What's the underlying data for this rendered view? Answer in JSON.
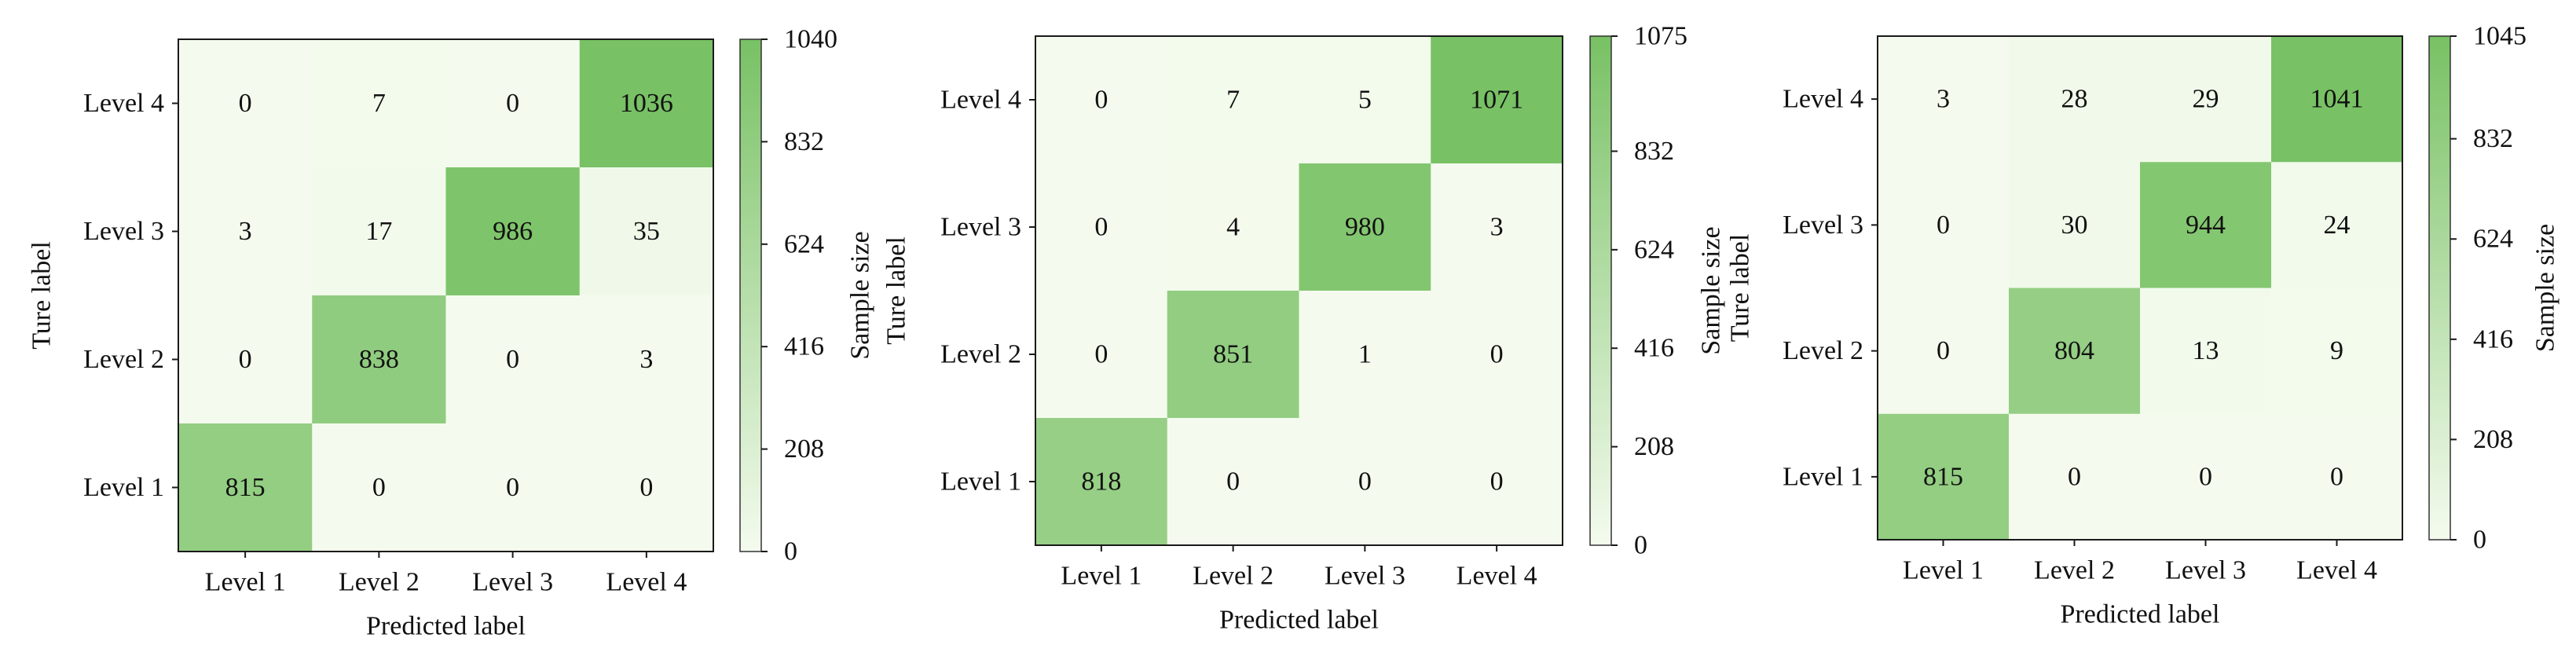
{
  "chart_data": [
    {
      "type": "heatmap",
      "xlabel": "Predicted label",
      "ylabel": "Ture label",
      "x_categories": [
        "Level 1",
        "Level 2",
        "Level 3",
        "Level 4"
      ],
      "y_categories": [
        "Level 4",
        "Level 3",
        "Level 2",
        "Level 1"
      ],
      "values": [
        [
          0,
          7,
          0,
          1036
        ],
        [
          3,
          17,
          986,
          35
        ],
        [
          0,
          838,
          0,
          3
        ],
        [
          815,
          0,
          0,
          0
        ]
      ],
      "grid": false,
      "colorbar": {
        "label": "Sample size",
        "position": "right",
        "range": [
          0,
          1040
        ],
        "ticks": [
          0,
          208,
          416,
          624,
          832,
          1040
        ],
        "colors": {
          "low": "#f4fbee",
          "high": "#78c164"
        }
      }
    },
    {
      "type": "heatmap",
      "xlabel": "Predicted label",
      "ylabel": "Ture label",
      "x_categories": [
        "Level 1",
        "Level 2",
        "Level 3",
        "Level 4"
      ],
      "y_categories": [
        "Level 4",
        "Level 3",
        "Level 2",
        "Level 1"
      ],
      "values": [
        [
          0,
          7,
          5,
          1071
        ],
        [
          0,
          4,
          980,
          3
        ],
        [
          0,
          851,
          1,
          0
        ],
        [
          818,
          0,
          0,
          0
        ]
      ],
      "grid": false,
      "colorbar": {
        "label": "Sample size",
        "position": "right",
        "range": [
          0,
          1075
        ],
        "ticks": [
          0,
          208,
          416,
          624,
          832,
          1075
        ],
        "colors": {
          "low": "#f4fbee",
          "high": "#78c164"
        }
      }
    },
    {
      "type": "heatmap",
      "xlabel": "Predicted label",
      "ylabel": "Ture label",
      "x_categories": [
        "Level 1",
        "Level 2",
        "Level 3",
        "Level 4"
      ],
      "y_categories": [
        "Level 4",
        "Level 3",
        "Level 2",
        "Level 1"
      ],
      "values": [
        [
          3,
          28,
          29,
          1041
        ],
        [
          0,
          30,
          944,
          24
        ],
        [
          0,
          804,
          13,
          9
        ],
        [
          815,
          0,
          0,
          0
        ]
      ],
      "grid": false,
      "colorbar": {
        "label": "Sample size",
        "position": "right",
        "range": [
          0,
          1045
        ],
        "ticks": [
          0,
          208,
          416,
          624,
          832,
          1045
        ],
        "colors": {
          "low": "#f4fbee",
          "high": "#78c164"
        }
      }
    }
  ]
}
